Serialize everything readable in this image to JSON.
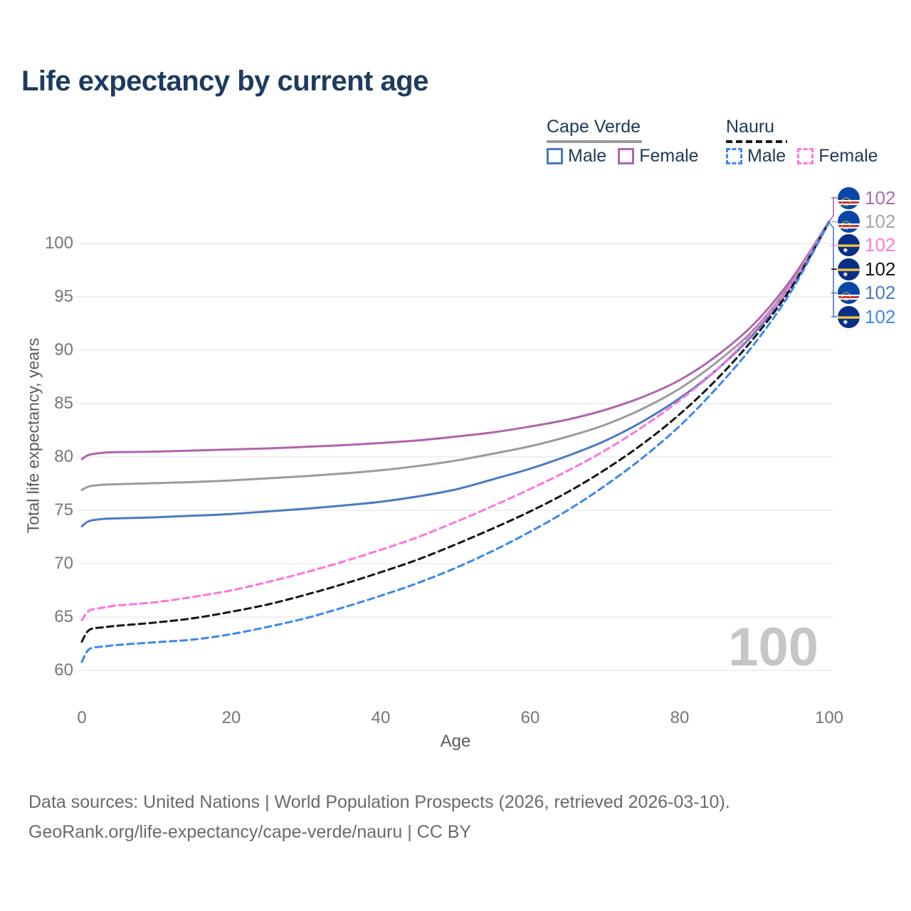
{
  "title": "Life expectancy by current age",
  "watermark": "100",
  "legend": {
    "groups": [
      {
        "country": "Cape Verde",
        "line_style": "solid",
        "line_color": "#9c9c9c",
        "items": [
          {
            "label": "Male",
            "color": "#4a7ac2",
            "dash": false
          },
          {
            "label": "Female",
            "color": "#b164ae",
            "dash": false
          }
        ]
      },
      {
        "country": "Nauru",
        "line_style": "dashed",
        "line_color": "#161616",
        "items": [
          {
            "label": "Male",
            "color": "#3b87f0",
            "dash": true
          },
          {
            "label": "Female",
            "color": "#ff74de",
            "dash": true
          }
        ]
      }
    ]
  },
  "chart_data": {
    "type": "line",
    "title": "Life expectancy by current age",
    "xlabel": "Age",
    "ylabel": "Total life expectancy, years",
    "xlim": [
      0,
      100
    ],
    "ylim": [
      58,
      104
    ],
    "xticks": [
      0,
      20,
      40,
      60,
      80,
      100
    ],
    "yticks": [
      60,
      65,
      70,
      75,
      80,
      85,
      90,
      95,
      100
    ],
    "grid": "horizontal-only",
    "legend_position": "top-right",
    "x": [
      0,
      1,
      3,
      5,
      10,
      15,
      20,
      25,
      30,
      35,
      40,
      45,
      50,
      55,
      60,
      65,
      70,
      75,
      80,
      85,
      90,
      95,
      100
    ],
    "series": [
      {
        "name": "Cape Verde Female",
        "color": "#b164ae",
        "dash": false,
        "flag": "cape-verde",
        "values": [
          79.8,
          80.2,
          80.4,
          80.45,
          80.5,
          80.6,
          80.7,
          80.8,
          80.95,
          81.1,
          81.3,
          81.55,
          81.9,
          82.3,
          82.85,
          83.5,
          84.4,
          85.6,
          87.2,
          89.5,
          92.5,
          96.7,
          102.1
        ]
      },
      {
        "name": "Cape Verde Both sexes",
        "color": "#9b9b9b",
        "dash": false,
        "flag": "cape-verde",
        "values": [
          76.9,
          77.25,
          77.4,
          77.45,
          77.55,
          77.65,
          77.8,
          78.0,
          78.2,
          78.45,
          78.75,
          79.15,
          79.65,
          80.3,
          81.0,
          81.9,
          83.0,
          84.5,
          86.4,
          88.9,
          92.0,
          96.4,
          102.1
        ]
      },
      {
        "name": "Cape Verde Male",
        "color": "#4a7ac2",
        "dash": false,
        "flag": "cape-verde",
        "values": [
          73.5,
          74.0,
          74.2,
          74.25,
          74.35,
          74.5,
          74.65,
          74.9,
          75.15,
          75.45,
          75.8,
          76.3,
          76.95,
          77.9,
          78.9,
          80.1,
          81.5,
          83.3,
          85.5,
          88.2,
          91.6,
          96.1,
          102.0
        ]
      },
      {
        "name": "Nauru Female",
        "color": "#ff74de",
        "dash": true,
        "flag": "nauru",
        "values": [
          64.7,
          65.6,
          65.9,
          66.1,
          66.4,
          66.9,
          67.5,
          68.3,
          69.2,
          70.2,
          71.3,
          72.5,
          73.9,
          75.4,
          77.0,
          78.7,
          80.6,
          82.8,
          85.3,
          88.2,
          91.8,
          96.2,
          102.0
        ]
      },
      {
        "name": "Nauru Both sexes",
        "color": "#161616",
        "dash": true,
        "flag": "nauru",
        "values": [
          62.7,
          63.8,
          64.05,
          64.2,
          64.5,
          64.9,
          65.5,
          66.2,
          67.1,
          68.1,
          69.2,
          70.4,
          71.8,
          73.3,
          74.9,
          76.7,
          78.8,
          81.2,
          84.0,
          87.3,
          91.2,
          95.9,
          102.0
        ]
      },
      {
        "name": "Nauru Male",
        "color": "#3b87f0",
        "dash": true,
        "flag": "nauru",
        "values": [
          60.8,
          62.0,
          62.25,
          62.4,
          62.65,
          62.9,
          63.4,
          64.1,
          64.9,
          65.9,
          67.0,
          68.2,
          69.6,
          71.2,
          73.0,
          75.0,
          77.3,
          79.9,
          82.9,
          86.5,
          90.6,
          95.6,
          102.0
        ]
      }
    ],
    "right_labels": [
      {
        "series": "Cape Verde Female",
        "flag": "cape-verde",
        "value": "102",
        "color": "#b06ab2"
      },
      {
        "series": "Cape Verde Both sexes",
        "flag": "cape-verde",
        "value": "102",
        "color": "#a6a6a6"
      },
      {
        "series": "Nauru Female",
        "flag": "nauru",
        "value": "102",
        "color": "#ff7be0"
      },
      {
        "series": "Nauru Both sexes",
        "flag": "nauru",
        "value": "102",
        "color": "#141414"
      },
      {
        "series": "Cape Verde Male",
        "flag": "cape-verde",
        "value": "102",
        "color": "#4a7ac2"
      },
      {
        "series": "Nauru Male",
        "flag": "nauru",
        "value": "102",
        "color": "#4189f2"
      }
    ]
  },
  "footer": {
    "line1": "Data sources: United Nations | World Population Prospects (2026, retrieved 2026-03-10).",
    "line2": "GeoRank.org/life-expectancy/cape-verde/nauru | CC BY"
  }
}
